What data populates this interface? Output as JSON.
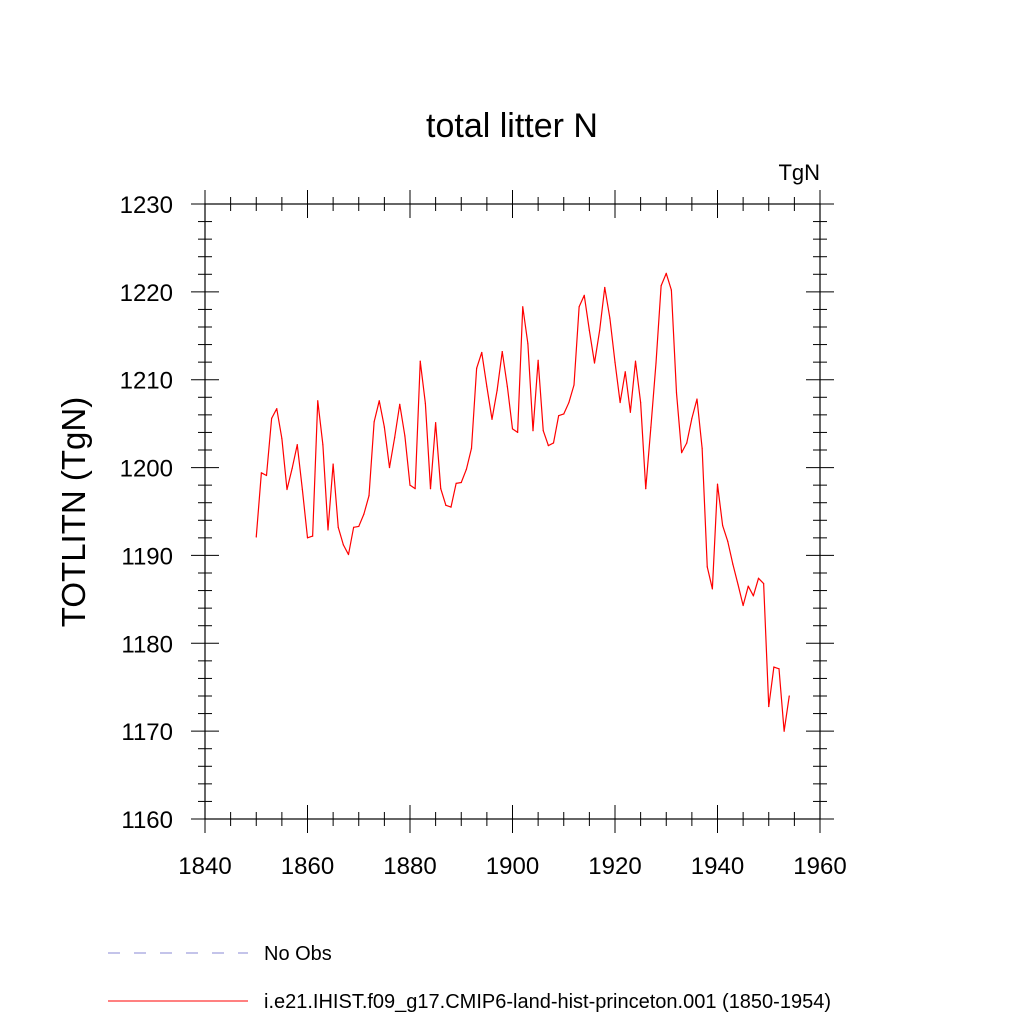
{
  "chart_data": {
    "type": "line",
    "title": "total litter N",
    "units_label": "TgN",
    "ylabel": "TOTLITN  (TgN)",
    "xlabel": "",
    "xlim": [
      1840,
      1960
    ],
    "ylim": [
      1160,
      1230
    ],
    "x_ticks": [
      "1840",
      "1860",
      "1880",
      "1900",
      "1920",
      "1940",
      "1960"
    ],
    "y_ticks": [
      "1160",
      "1170",
      "1180",
      "1190",
      "1200",
      "1210",
      "1220",
      "1230"
    ],
    "grid": false,
    "legend_position": "bottom",
    "legend": [
      {
        "label": "No Obs",
        "color": "#8a8ad6",
        "style": "dashed"
      },
      {
        "label": "i.e21.IHIST.f09_g17.CMIP6-land-hist-princeton.001 (1850-1954)",
        "color": "#ff0000",
        "style": "solid"
      }
    ],
    "series": [
      {
        "name": "i.e21.IHIST.f09_g17.CMIP6-land-hist-princeton.001 (1850-1954)",
        "color": "#ff0000",
        "x": [
          1850,
          1851,
          1852,
          1853,
          1854,
          1855,
          1856,
          1857,
          1858,
          1859,
          1860,
          1861,
          1862,
          1863,
          1864,
          1865,
          1866,
          1867,
          1868,
          1869,
          1870,
          1871,
          1872,
          1873,
          1874,
          1875,
          1876,
          1877,
          1878,
          1879,
          1880,
          1881,
          1882,
          1883,
          1884,
          1885,
          1886,
          1887,
          1888,
          1889,
          1890,
          1891,
          1892,
          1893,
          1894,
          1895,
          1896,
          1897,
          1898,
          1899,
          1900,
          1901,
          1902,
          1903,
          1904,
          1905,
          1906,
          1907,
          1908,
          1909,
          1910,
          1911,
          1912,
          1913,
          1914,
          1915,
          1916,
          1917,
          1918,
          1919,
          1920,
          1921,
          1922,
          1923,
          1924,
          1925,
          1926,
          1927,
          1928,
          1929,
          1930,
          1931,
          1932,
          1933,
          1934,
          1935,
          1936,
          1937,
          1938,
          1939,
          1940,
          1941,
          1942,
          1943,
          1944,
          1945,
          1946,
          1947,
          1948,
          1949,
          1950,
          1951,
          1952,
          1953,
          1954
        ],
        "y": [
          1192.1,
          1199.4,
          1199.1,
          1205.6,
          1206.7,
          1203.3,
          1197.5,
          1199.9,
          1202.6,
          1197.5,
          1192.0,
          1192.2,
          1207.6,
          1202.6,
          1192.9,
          1200.4,
          1193.2,
          1191.2,
          1190.1,
          1193.2,
          1193.3,
          1194.7,
          1196.8,
          1205.2,
          1207.6,
          1204.6,
          1200.0,
          1203.4,
          1207.2,
          1203.6,
          1198.0,
          1197.6,
          1212.1,
          1207.3,
          1197.6,
          1205.1,
          1197.6,
          1195.7,
          1195.5,
          1198.2,
          1198.3,
          1199.8,
          1202.2,
          1211.3,
          1213.1,
          1209.2,
          1205.5,
          1208.8,
          1213.2,
          1209.2,
          1204.4,
          1204.0,
          1218.3,
          1214.1,
          1204.2,
          1212.2,
          1204.2,
          1202.5,
          1202.8,
          1205.9,
          1206.1,
          1207.4,
          1209.4,
          1218.3,
          1219.6,
          1215.6,
          1211.9,
          1215.6,
          1220.5,
          1217.0,
          1212.0,
          1207.4,
          1210.9,
          1206.3,
          1212.1,
          1207.4,
          1197.6,
          1204.6,
          1211.9,
          1220.7,
          1222.1,
          1220.2,
          1208.5,
          1201.7,
          1202.8,
          1205.6,
          1207.8,
          1202.2,
          1188.7,
          1186.2,
          1198.1,
          1193.4,
          1191.6,
          1189.0,
          1186.7,
          1184.3,
          1186.5,
          1185.4,
          1187.4,
          1186.8,
          1172.8,
          1177.3,
          1177.1,
          1170.0,
          1174.0
        ]
      }
    ]
  }
}
